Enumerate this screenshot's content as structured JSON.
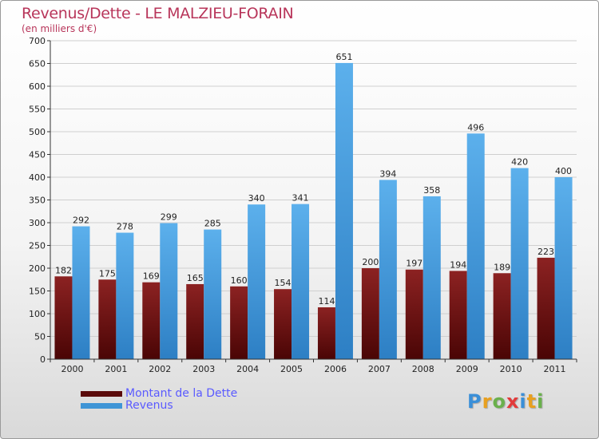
{
  "header": {
    "title": "Revenus/Dette - LE MALZIEU-FORAIN",
    "subtitle": "(en milliers d'€)"
  },
  "chart_data": {
    "type": "bar",
    "title": "Revenus/Dette - LE MALZIEU-FORAIN",
    "ylabel": "(en milliers d'€)",
    "xlabel": "",
    "ylim": [
      0,
      700
    ],
    "yticks": [
      0,
      50,
      100,
      150,
      200,
      250,
      300,
      350,
      400,
      450,
      500,
      550,
      600,
      650,
      700
    ],
    "grid": true,
    "categories": [
      "2000",
      "2001",
      "2002",
      "2003",
      "2004",
      "2005",
      "2006",
      "2007",
      "2008",
      "2009",
      "2010",
      "2011"
    ],
    "series": [
      {
        "name": "Montant de la Dette",
        "color": "#7a1616",
        "values": [
          182,
          175,
          169,
          165,
          160,
          154,
          114,
          200,
          197,
          194,
          189,
          223
        ]
      },
      {
        "name": "Revenus",
        "color": "#4ea6e6",
        "values": [
          292,
          278,
          299,
          285,
          340,
          341,
          651,
          394,
          358,
          496,
          420,
          400
        ]
      }
    ],
    "legend_position": "bottom-left"
  },
  "legend": {
    "items": [
      {
        "label": "Montant de la Dette",
        "color": "#5a0a0a",
        "text_color": "#5a5aff"
      },
      {
        "label": "Revenus",
        "color": "#3f95d6",
        "text_color": "#5a5aff"
      }
    ]
  },
  "logo": {
    "letters": [
      "P",
      "r",
      "o",
      "x",
      "i",
      "t",
      "i"
    ],
    "colors": [
      "#3a8fd8",
      "#e8a020",
      "#6ab04c",
      "#e23b3b",
      "#3a8fd8",
      "#e8a020",
      "#6ab04c"
    ]
  }
}
